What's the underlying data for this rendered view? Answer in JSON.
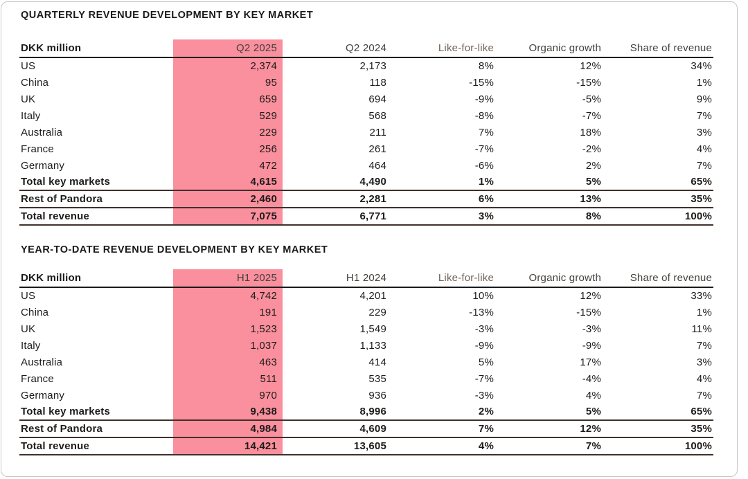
{
  "page": {
    "colors": {
      "highlight_pink": "#FA8F9E",
      "body_text": "#1E1C1A",
      "header_text": "#44403B",
      "header_text_muted": "#6F6358",
      "header_rule": "#1A1A1A",
      "total_rule": "#40302A",
      "card_border": "#C5C5C5"
    }
  },
  "tables": [
    {
      "title": "QUARTERLY REVENUE DEVELOPMENT BY KEY MARKET",
      "unit_label": "DKK million",
      "columns": [
        "Q2 2025",
        "Q2 2024",
        "Like-for-like",
        "Organic growth",
        "Share of revenue"
      ],
      "highlighted_column": "Q2 2025",
      "rows": [
        {
          "label": "US",
          "values": [
            "2,374",
            "2,173",
            "8%",
            "12%",
            "34%"
          ],
          "bold": false,
          "rule_below": false,
          "tall": false
        },
        {
          "label": "China",
          "values": [
            "95",
            "118",
            "-15%",
            "-15%",
            "1%"
          ],
          "bold": false,
          "rule_below": false,
          "tall": false
        },
        {
          "label": "UK",
          "values": [
            "659",
            "694",
            "-9%",
            "-5%",
            "9%"
          ],
          "bold": false,
          "rule_below": false,
          "tall": false
        },
        {
          "label": "Italy",
          "values": [
            "529",
            "568",
            "-8%",
            "-7%",
            "7%"
          ],
          "bold": false,
          "rule_below": false,
          "tall": false
        },
        {
          "label": "Australia",
          "values": [
            "229",
            "211",
            "7%",
            "18%",
            "3%"
          ],
          "bold": false,
          "rule_below": false,
          "tall": false
        },
        {
          "label": "France",
          "values": [
            "256",
            "261",
            "-7%",
            "-2%",
            "4%"
          ],
          "bold": false,
          "rule_below": false,
          "tall": false
        },
        {
          "label": "Germany",
          "values": [
            "472",
            "464",
            "-6%",
            "2%",
            "7%"
          ],
          "bold": false,
          "rule_below": false,
          "tall": false
        },
        {
          "label": "Total key markets",
          "values": [
            "4,615",
            "4,490",
            "1%",
            "5%",
            "65%"
          ],
          "bold": true,
          "rule_below": true,
          "tall": false
        },
        {
          "label": "Rest of Pandora",
          "values": [
            "2,460",
            "2,281",
            "6%",
            "13%",
            "35%"
          ],
          "bold": true,
          "rule_below": true,
          "tall": true
        },
        {
          "label": "Total revenue",
          "values": [
            "7,075",
            "6,771",
            "3%",
            "8%",
            "100%"
          ],
          "bold": true,
          "rule_below": true,
          "tall": true
        }
      ]
    },
    {
      "title": "YEAR-TO-DATE REVENUE DEVELOPMENT BY KEY MARKET",
      "unit_label": "DKK million",
      "columns": [
        "H1 2025",
        "H1 2024",
        "Like-for-like",
        "Organic growth",
        "Share of revenue"
      ],
      "highlighted_column": "H1 2025",
      "rows": [
        {
          "label": "US",
          "values": [
            "4,742",
            "4,201",
            "10%",
            "12%",
            "33%"
          ],
          "bold": false,
          "rule_below": false,
          "tall": false
        },
        {
          "label": "China",
          "values": [
            "191",
            "229",
            "-13%",
            "-15%",
            "1%"
          ],
          "bold": false,
          "rule_below": false,
          "tall": false
        },
        {
          "label": "UK",
          "values": [
            "1,523",
            "1,549",
            "-3%",
            "-3%",
            "11%"
          ],
          "bold": false,
          "rule_below": false,
          "tall": false
        },
        {
          "label": "Italy",
          "values": [
            "1,037",
            "1,133",
            "-9%",
            "-9%",
            "7%"
          ],
          "bold": false,
          "rule_below": false,
          "tall": false
        },
        {
          "label": "Australia",
          "values": [
            "463",
            "414",
            "5%",
            "17%",
            "3%"
          ],
          "bold": false,
          "rule_below": false,
          "tall": false
        },
        {
          "label": "France",
          "values": [
            "511",
            "535",
            "-7%",
            "-4%",
            "4%"
          ],
          "bold": false,
          "rule_below": false,
          "tall": false
        },
        {
          "label": "Germany",
          "values": [
            "970",
            "936",
            "-3%",
            "4%",
            "7%"
          ],
          "bold": false,
          "rule_below": false,
          "tall": false
        },
        {
          "label": "Total key markets",
          "values": [
            "9,438",
            "8,996",
            "2%",
            "5%",
            "65%"
          ],
          "bold": true,
          "rule_below": true,
          "tall": false
        },
        {
          "label": "Rest of Pandora",
          "values": [
            "4,984",
            "4,609",
            "7%",
            "12%",
            "35%"
          ],
          "bold": true,
          "rule_below": true,
          "tall": true
        },
        {
          "label": "Total revenue",
          "values": [
            "14,421",
            "13,605",
            "4%",
            "7%",
            "100%"
          ],
          "bold": true,
          "rule_below": true,
          "tall": true
        }
      ]
    }
  ]
}
